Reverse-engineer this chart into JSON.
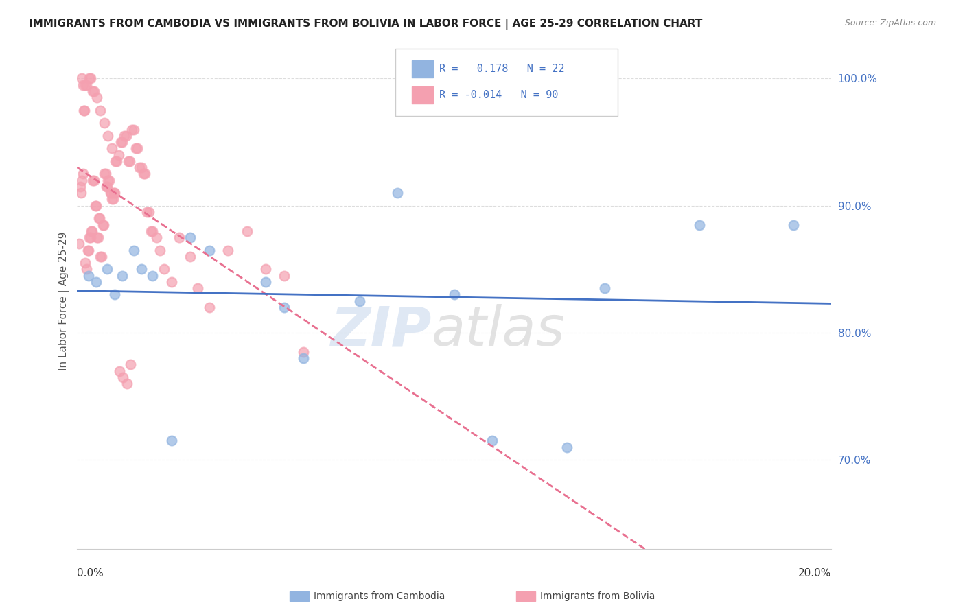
{
  "title": "IMMIGRANTS FROM CAMBODIA VS IMMIGRANTS FROM BOLIVIA IN LABOR FORCE | AGE 25-29 CORRELATION CHART",
  "source": "Source: ZipAtlas.com",
  "ylabel": "In Labor Force | Age 25-29",
  "x_range": [
    0.0,
    20.0
  ],
  "y_range": [
    63.0,
    102.0
  ],
  "y_ticks": [
    70.0,
    80.0,
    90.0,
    100.0
  ],
  "cambodia_color": "#92b4e0",
  "bolivia_color": "#f4a0b0",
  "cambodia_line_color": "#4472c4",
  "bolivia_line_color": "#e87090",
  "cambodia_R": 0.178,
  "cambodia_N": 22,
  "bolivia_R": -0.014,
  "bolivia_N": 90,
  "background_color": "#ffffff",
  "grid_color": "#dddddd",
  "cambodia_points_x": [
    0.3,
    0.5,
    0.8,
    1.0,
    1.2,
    1.5,
    1.7,
    2.0,
    2.5,
    3.0,
    3.5,
    5.0,
    6.0,
    7.5,
    8.5,
    10.0,
    11.0,
    13.0,
    14.0,
    16.5,
    19.0,
    5.5
  ],
  "cambodia_points_y": [
    84.5,
    84.0,
    85.0,
    83.0,
    84.5,
    86.5,
    85.0,
    84.5,
    71.5,
    87.5,
    86.5,
    84.0,
    78.0,
    82.5,
    91.0,
    83.0,
    71.5,
    71.0,
    83.5,
    88.5,
    88.5,
    82.0
  ],
  "bolivia_points_x": [
    0.05,
    0.08,
    0.1,
    0.12,
    0.15,
    0.18,
    0.2,
    0.22,
    0.25,
    0.28,
    0.3,
    0.32,
    0.35,
    0.38,
    0.4,
    0.42,
    0.45,
    0.48,
    0.5,
    0.52,
    0.55,
    0.58,
    0.6,
    0.62,
    0.65,
    0.68,
    0.7,
    0.72,
    0.75,
    0.78,
    0.8,
    0.82,
    0.85,
    0.88,
    0.9,
    0.92,
    0.95,
    0.98,
    1.0,
    1.05,
    1.1,
    1.15,
    1.2,
    1.25,
    1.3,
    1.35,
    1.4,
    1.45,
    1.5,
    1.55,
    1.6,
    1.65,
    1.7,
    1.75,
    1.8,
    1.85,
    1.9,
    1.95,
    2.0,
    2.1,
    2.2,
    2.3,
    2.5,
    2.7,
    3.0,
    3.2,
    3.5,
    4.0,
    4.5,
    5.0,
    5.5,
    6.0,
    0.15,
    0.25,
    0.35,
    0.45,
    0.12,
    0.22,
    0.32,
    0.42,
    0.52,
    0.62,
    0.72,
    0.82,
    0.92,
    1.02,
    1.12,
    1.22,
    1.32,
    1.42
  ],
  "bolivia_points_y": [
    87.0,
    91.5,
    91.0,
    92.0,
    92.5,
    97.5,
    97.5,
    85.5,
    85.0,
    86.5,
    86.5,
    87.5,
    87.5,
    88.0,
    88.0,
    92.0,
    92.0,
    90.0,
    90.0,
    87.5,
    87.5,
    89.0,
    89.0,
    86.0,
    86.0,
    88.5,
    88.5,
    92.5,
    92.5,
    91.5,
    91.5,
    92.0,
    92.0,
    91.0,
    91.0,
    90.5,
    90.5,
    91.0,
    91.0,
    93.5,
    94.0,
    95.0,
    95.0,
    95.5,
    95.5,
    93.5,
    93.5,
    96.0,
    96.0,
    94.5,
    94.5,
    93.0,
    93.0,
    92.5,
    92.5,
    89.5,
    89.5,
    88.0,
    88.0,
    87.5,
    86.5,
    85.0,
    84.0,
    87.5,
    86.0,
    83.5,
    82.0,
    86.5,
    88.0,
    85.0,
    84.5,
    78.5,
    99.5,
    99.5,
    100.0,
    99.0,
    100.0,
    99.5,
    100.0,
    99.0,
    98.5,
    97.5,
    96.5,
    95.5,
    94.5,
    93.5,
    77.0,
    76.5,
    76.0,
    77.5
  ]
}
